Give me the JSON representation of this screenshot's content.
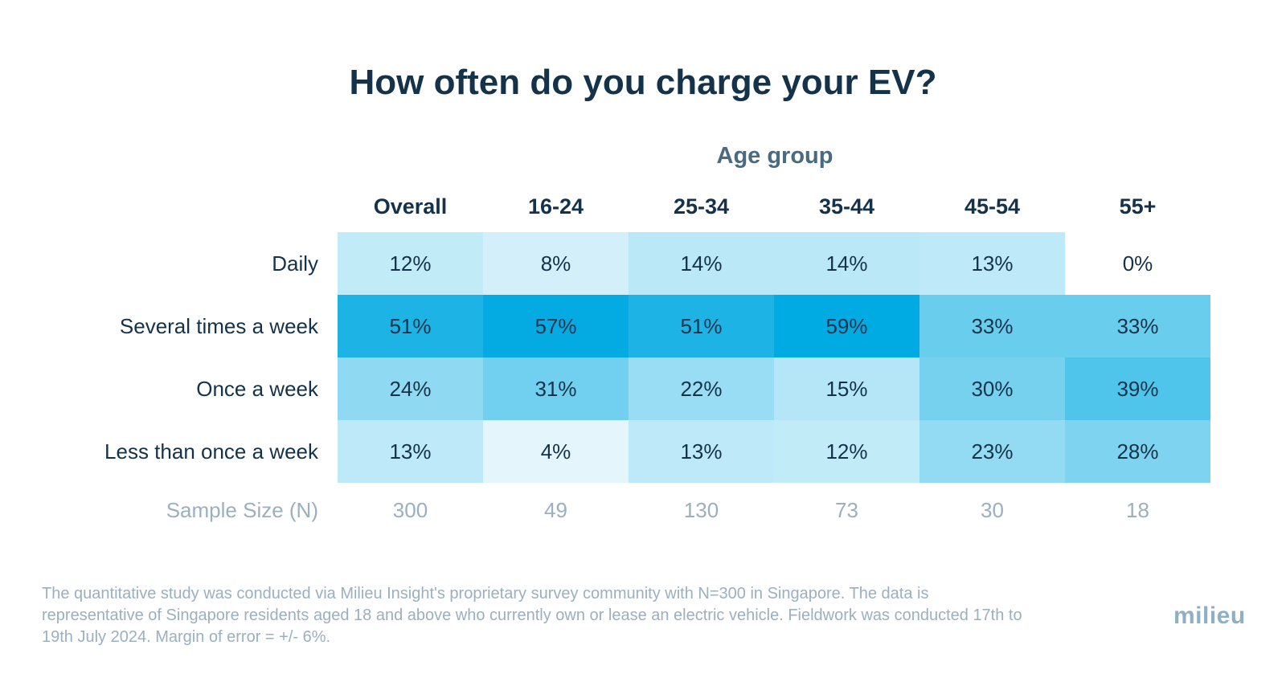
{
  "title": "How often do you charge your EV?",
  "chart_data": {
    "type": "heatmap",
    "title": "How often do you charge your EV?",
    "column_group_label": "Age group",
    "columns": [
      "Overall",
      "16-24",
      "25-34",
      "35-44",
      "45-54",
      "55+"
    ],
    "rows": [
      {
        "label": "Daily",
        "values": [
          12,
          8,
          14,
          14,
          13,
          0
        ],
        "display": [
          "12%",
          "8%",
          "14%",
          "14%",
          "13%",
          "0%"
        ]
      },
      {
        "label": "Several times a week",
        "values": [
          51,
          57,
          51,
          59,
          33,
          33
        ],
        "display": [
          "51%",
          "57%",
          "51%",
          "59%",
          "33%",
          "33%"
        ]
      },
      {
        "label": "Once a week",
        "values": [
          24,
          31,
          22,
          15,
          30,
          39
        ],
        "display": [
          "24%",
          "31%",
          "22%",
          "15%",
          "30%",
          "39%"
        ]
      },
      {
        "label": "Less than once a week",
        "values": [
          13,
          4,
          13,
          12,
          23,
          28
        ],
        "display": [
          "13%",
          "4%",
          "13%",
          "12%",
          "23%",
          "28%"
        ]
      }
    ],
    "sample_size_label": "Sample Size (N)",
    "sample_sizes": [
      "300",
      "49",
      "130",
      "73",
      "30",
      "18"
    ],
    "color_low": "#ffffff",
    "color_high": "#00aae2"
  },
  "footnote": "The quantitative study was conducted via Milieu Insight's proprietary survey community with N=300 in Singapore. The data is representative of Singapore residents aged 18 and above who currently own or lease an electric vehicle. Fieldwork was conducted 17th to 19th July 2024. Margin of error = +/- 6%.",
  "logo_text": "milieu"
}
